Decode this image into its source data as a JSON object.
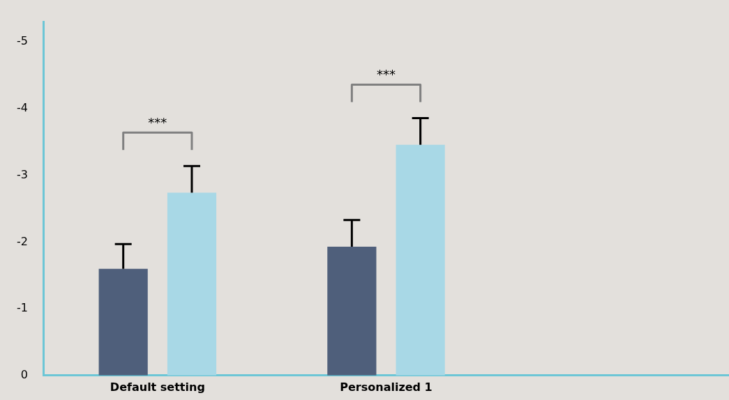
{
  "chart_data": {
    "type": "bar",
    "categories": [
      "Default setting",
      "Personalized 1",
      null
    ],
    "series": [
      {
        "color": "#4f5f7b",
        "values": [
          -1.6,
          -1.93,
          null
        ],
        "errors": [
          [
            -1.97,
            -1.6
          ],
          [
            -2.33,
            -1.93
          ],
          null
        ]
      },
      {
        "color": "#a8d8e6",
        "values": [
          -2.74,
          -3.46,
          null
        ],
        "errors": [
          [
            -3.14,
            -2.74
          ],
          [
            -3.86,
            -3.46
          ],
          null
        ]
      }
    ],
    "ylim": [
      0,
      -5.3
    ],
    "yticks": [
      0,
      -1,
      -2,
      -3,
      -4,
      -5
    ],
    "grid": false,
    "legend": false,
    "annotations": [
      "***",
      "***"
    ]
  }
}
